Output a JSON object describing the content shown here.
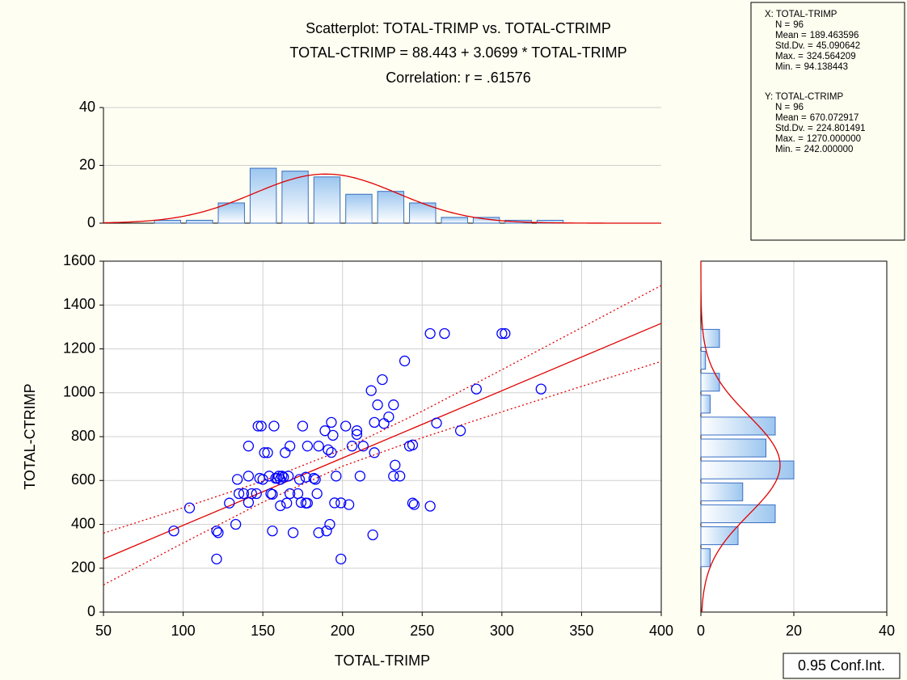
{
  "chart_data": [
    {
      "type": "scatter",
      "title": "Scatterplot: TOTAL-TRIMP vs. TOTAL-CTRIMP",
      "subtitle": "TOTAL-CTRIMP = 88.443 + 3.0699 * TOTAL-TRIMP",
      "annotation": "Correlation: r = .61576",
      "x_label": "TOTAL-TRIMP",
      "y_label": "TOTAL-CTRIMP",
      "color": "#0000ff",
      "x": [
        94.14,
        104,
        121,
        122,
        121,
        129,
        133,
        134,
        135,
        138,
        141,
        141,
        141,
        143,
        146,
        147,
        149,
        148,
        150,
        151,
        153,
        154,
        155,
        156,
        156,
        157,
        158,
        159,
        160,
        161,
        161,
        162,
        163,
        164,
        165,
        166,
        167,
        167,
        169,
        172,
        173,
        174,
        175,
        177,
        177,
        178,
        178,
        182,
        183,
        184,
        185,
        185,
        189,
        190,
        191,
        192,
        193,
        193,
        194,
        195,
        196,
        199,
        199,
        202,
        204,
        206,
        209,
        209,
        211,
        213,
        218,
        219,
        220,
        220,
        222,
        225,
        226,
        229,
        232,
        233,
        232,
        236,
        239,
        242,
        244,
        244,
        245,
        255,
        255,
        259,
        264,
        274,
        284,
        300,
        302,
        324.56
      ],
      "values": [
        370,
        475,
        370,
        362,
        242,
        497,
        400,
        605,
        540,
        540,
        500,
        620,
        757,
        540,
        540,
        848,
        848,
        610,
        605,
        727,
        727,
        620,
        540,
        537,
        370,
        848,
        610,
        610,
        620,
        605,
        485,
        620,
        615,
        727,
        497,
        620,
        757,
        540,
        362,
        540,
        605,
        500,
        848,
        615,
        497,
        497,
        757,
        610,
        605,
        540,
        757,
        362,
        827,
        370,
        740,
        400,
        728,
        865,
        806,
        498,
        620,
        498,
        242,
        848,
        490,
        757,
        827,
        810,
        620,
        757,
        1010,
        352,
        865,
        727,
        945,
        1060,
        860,
        890,
        945,
        670,
        620,
        620,
        1145,
        757,
        762,
        497,
        490,
        1270,
        483,
        862,
        1270,
        827,
        1017,
        1270,
        1270,
        1017
      ],
      "xlim": [
        50,
        400
      ],
      "xticks": [
        50,
        100,
        150,
        200,
        250,
        300,
        350,
        400
      ],
      "ylim": [
        0,
        1600
      ],
      "yticks": [
        0,
        200,
        400,
        600,
        800,
        1000,
        1200,
        1400,
        1600
      ],
      "grid": true,
      "regression": {
        "intercept": 88.443,
        "slope": 3.0699,
        "color": "#e00000"
      },
      "conf_band": {
        "label": "0.95 Conf.Int.",
        "x": [
          50,
          100,
          150,
          200,
          250,
          300,
          350,
          400
        ],
        "lower": [
          124,
          315,
          501,
          665,
          795,
          913,
          1029,
          1143
        ],
        "upper": [
          360,
          476,
          597,
          740,
          916,
          1105,
          1297,
          1489
        ]
      }
    },
    {
      "type": "histogram",
      "orientation": "vertical",
      "color": "#3a6fc4",
      "curve_color": "#e00000",
      "bins": [
        80,
        100,
        120,
        140,
        160,
        180,
        200,
        220,
        240,
        260,
        280,
        300,
        320,
        340
      ],
      "values": [
        1,
        1,
        7,
        19,
        18,
        16,
        10,
        11,
        7,
        2,
        2,
        1,
        1
      ],
      "xlim": [
        50,
        400
      ],
      "ylim": [
        0,
        40
      ],
      "yticks": [
        0,
        20,
        40
      ],
      "grid": true,
      "stats": {
        "header": "X:  TOTAL-TRIMP",
        "items": [
          {
            "label": "N =",
            "value": 96
          },
          {
            "label": "Mean =",
            "value": 189.463596
          },
          {
            "label": "Std.Dv. =",
            "value": 45.090642
          },
          {
            "label": "Max. =",
            "value": 324.564209
          },
          {
            "label": "Min. =",
            "value": 94.138443
          }
        ]
      }
    },
    {
      "type": "histogram",
      "orientation": "horizontal",
      "color": "#3a6fc4",
      "curve_color": "#e00000",
      "bins": [
        200,
        300,
        400,
        500,
        600,
        700,
        800,
        900,
        1000,
        1100,
        1200,
        1300
      ],
      "values": [
        2,
        8,
        16,
        9,
        20,
        14,
        16,
        2,
        4,
        1,
        4
      ],
      "ylim": [
        0,
        1600
      ],
      "xlim": [
        0,
        40
      ],
      "xticks": [
        0,
        20,
        40
      ],
      "grid": true,
      "stats": {
        "header": "Y:  TOTAL-CTRIMP",
        "items": [
          {
            "label": "N =",
            "value": 96
          },
          {
            "label": "Mean =",
            "value": 670.072917
          },
          {
            "label": "Std.Dv. =",
            "value": 224.801491
          },
          {
            "label": "Max. =",
            "value": 1270,
            "value_label": "1270.000000"
          },
          {
            "label": "Min. =",
            "value": 242,
            "value_label": "242.000000"
          }
        ]
      }
    }
  ]
}
